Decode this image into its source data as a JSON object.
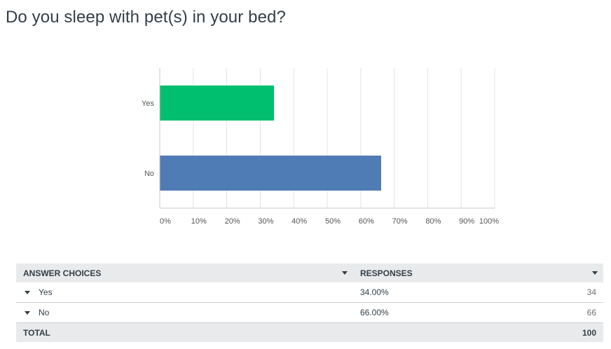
{
  "question": "Do you sleep with pet(s) in your bed?",
  "chart_data": {
    "type": "bar",
    "orientation": "horizontal",
    "categories": [
      "Yes",
      "No"
    ],
    "values": [
      34,
      66
    ],
    "colors": [
      "#00bf6f",
      "#507cb6"
    ],
    "xlim": [
      0,
      100
    ],
    "xticks": [
      "0%",
      "10%",
      "20%",
      "30%",
      "40%",
      "50%",
      "60%",
      "70%",
      "80%",
      "90%",
      "100%"
    ],
    "grid": true
  },
  "table": {
    "headers": [
      "ANSWER CHOICES",
      "RESPONSES"
    ],
    "rows": [
      {
        "choice": "Yes",
        "percent": "34.00%",
        "count": "34"
      },
      {
        "choice": "No",
        "percent": "66.00%",
        "count": "66"
      }
    ],
    "total_label": "TOTAL",
    "total_count": "100"
  }
}
